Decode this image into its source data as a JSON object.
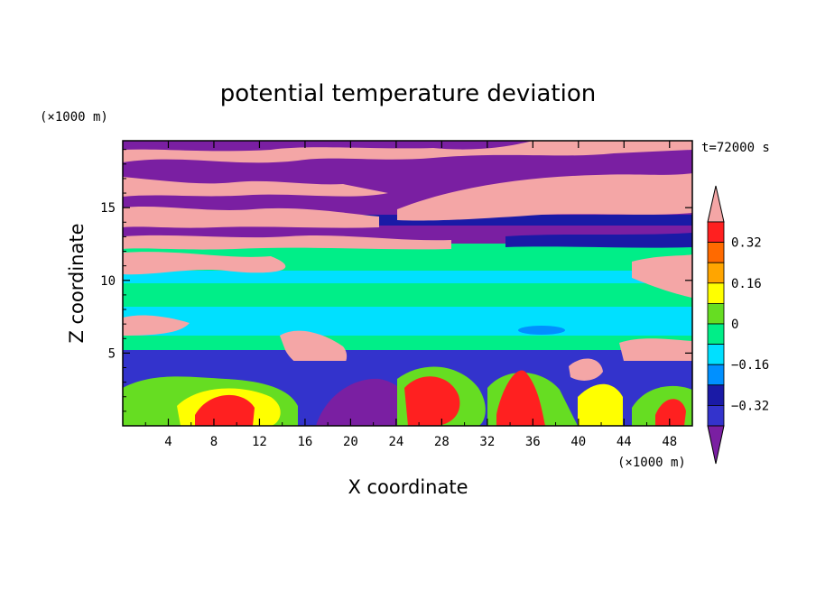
{
  "chart_data": {
    "type": "heatmap",
    "title": "potential temperature deviation",
    "xlabel": "X coordinate",
    "ylabel": "Z coordinate",
    "x_unit": "(×1000 m)",
    "y_unit": "(×1000 m)",
    "time_label": "t=72000 s",
    "xlim": [
      0,
      50
    ],
    "ylim": [
      0,
      19.6
    ],
    "x_ticks": [
      4,
      8,
      12,
      16,
      20,
      24,
      28,
      32,
      36,
      40,
      44,
      48
    ],
    "y_ticks": [
      5,
      10,
      15
    ],
    "colorbar": {
      "levels": [
        -0.4,
        -0.32,
        -0.24,
        -0.16,
        -0.08,
        0,
        0.08,
        0.16,
        0.24,
        0.32,
        0.4
      ],
      "tick_values": [
        -0.32,
        -0.16,
        0,
        0.16,
        0.32
      ],
      "tick_labels": [
        "−0.32",
        "−0.16",
        "0",
        "0.16",
        "0.32"
      ],
      "colors": [
        "#7a1fa2",
        "#3333cc",
        "#1a1aa6",
        "#0090ff",
        "#00e0ff",
        "#00ee88",
        "#66dd22",
        "#ffff00",
        "#ffa500",
        "#ff6a00",
        "#ff2020",
        "#f4a6a6"
      ],
      "extend": "both"
    },
    "bands": [
      {
        "z_range": [
          18,
          19.6
        ],
        "dominant": "≤ −0.4 / ≥ 0.4 mixed",
        "colors": [
          "#7a1fa2",
          "#f4a6a6"
        ]
      },
      {
        "z_range": [
          12.5,
          18
        ],
        "dominant": "≤ −0.4 and ≥ 0.4 layers",
        "colors": [
          "#7a1fa2",
          "#f4a6a6",
          "#1a1aa6"
        ]
      },
      {
        "z_range": [
          5.5,
          12.5
        ],
        "dominant": "−0.16 to 0.08",
        "colors": [
          "#00ee88",
          "#00e0ff",
          "#66dd22"
        ]
      },
      {
        "z_range": [
          0,
          5.5
        ],
        "dominant": "mixed −0.4 to ≥0.4",
        "colors": [
          "#7a1fa2",
          "#66dd22",
          "#ffff00",
          "#ff2020",
          "#3333cc"
        ]
      }
    ]
  }
}
